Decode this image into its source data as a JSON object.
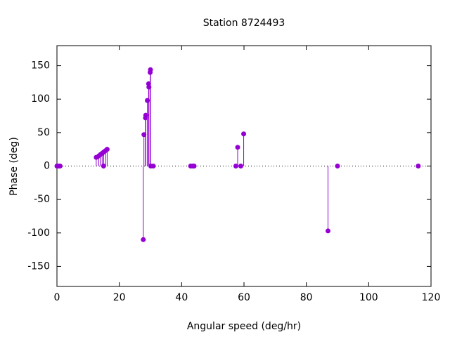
{
  "chart_data": {
    "type": "stem",
    "title": "Station 8724493",
    "x_label": "Angular speed (deg/hr)",
    "y_label": "Phase (deg)",
    "color": "#9400d3",
    "x": [
      0,
      0.5,
      1.0,
      12.6,
      13.4,
      13.9,
      14.5,
      14.96,
      15.0,
      15.6,
      16.1,
      27.7,
      27.9,
      28.4,
      28.5,
      29.0,
      29.4,
      29.5,
      29.9,
      30.0,
      30.1,
      30.9,
      42.9,
      43.5,
      44.0,
      57.4,
      57.97,
      58.98,
      59.9,
      86.95,
      90.0,
      115.9
    ],
    "values": [
      0,
      0,
      0,
      13,
      15,
      17,
      19,
      0,
      21,
      23,
      25,
      -110,
      47,
      72,
      76,
      98,
      123,
      118,
      140,
      144,
      0,
      0,
      0,
      0,
      0,
      0,
      28,
      0,
      48,
      -97,
      0,
      0
    ],
    "xlim": [
      0,
      120
    ],
    "xticks": [
      0,
      20,
      40,
      60,
      80,
      100,
      120
    ],
    "ylim": [
      -180,
      180
    ],
    "yticks": [
      -150,
      -100,
      -50,
      0,
      50,
      100,
      150
    ],
    "zero_line": true
  }
}
